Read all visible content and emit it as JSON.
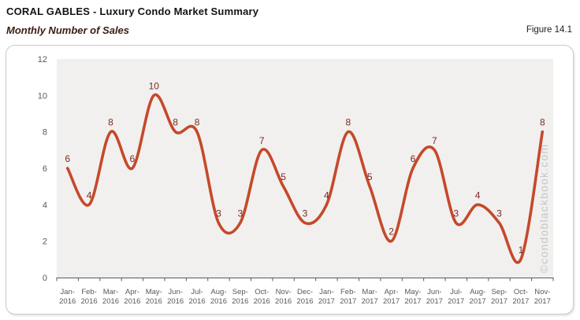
{
  "header": {
    "title": "CORAL GABLES - Luxury Condo Market Summary",
    "subtitle": "Monthly Number of Sales",
    "figure_label": "Figure 14.1"
  },
  "watermark": "©condoblackbook.com",
  "chart_data": {
    "type": "line",
    "title": "Monthly Number of Sales",
    "categories": [
      "Jan-2016",
      "Feb-2016",
      "Mar-2016",
      "Apr-2016",
      "May-2016",
      "Jun-2016",
      "Jul-2016",
      "Aug-2016",
      "Sep-2016",
      "Oct-2016",
      "Nov-2016",
      "Dec-2016",
      "Jan-2017",
      "Feb-2017",
      "Mar-2017",
      "Apr-2017",
      "May-2017",
      "Jun-2017",
      "Jul-2017",
      "Aug-2017",
      "Sep-2017",
      "Oct-2017",
      "Nov-2017"
    ],
    "values": [
      6,
      4,
      8,
      6,
      10,
      8,
      8,
      3,
      3,
      7,
      5,
      3,
      4,
      8,
      5,
      2,
      6,
      7,
      3,
      4,
      3,
      1,
      8
    ],
    "xlabel": "",
    "ylabel": "",
    "ylim": [
      0,
      12
    ],
    "yticks": [
      0,
      2,
      4,
      6,
      8,
      10,
      12
    ],
    "grid": false,
    "legend": "none",
    "smooth": true,
    "data_labels": true,
    "colors": {
      "line": "#c5492a",
      "data_label": "#7d2a1e",
      "axis_text": "#595959",
      "axis_line": "#595959",
      "plot_bg": "#f1f0ef",
      "watermark": "#c6c6c6"
    }
  }
}
